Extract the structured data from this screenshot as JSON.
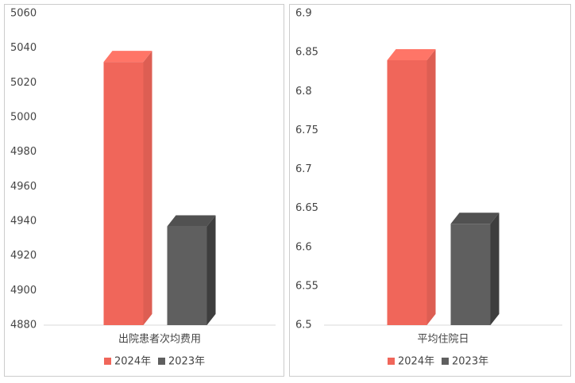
{
  "chart_data": [
    {
      "type": "bar3d",
      "categories": [
        "出院患者次均费用"
      ],
      "series": [
        {
          "name": "2024年",
          "color": "#f0665a",
          "values": [
            5032
          ]
        },
        {
          "name": "2023年",
          "color": "#5f5f5f",
          "values": [
            4937
          ]
        }
      ],
      "ylim": [
        4880,
        5060
      ],
      "yticks": [
        4880,
        4900,
        4920,
        4940,
        4960,
        4980,
        5000,
        5020,
        5040,
        5060
      ],
      "legend": "bottom"
    },
    {
      "type": "bar3d",
      "categories": [
        "平均住院日"
      ],
      "series": [
        {
          "name": "2024年",
          "color": "#f0665a",
          "values": [
            6.84
          ]
        },
        {
          "name": "2023年",
          "color": "#5f5f5f",
          "values": [
            6.63
          ]
        }
      ],
      "ylim": [
        6.5,
        6.9
      ],
      "yticks": [
        6.5,
        6.55,
        6.6,
        6.65,
        6.7,
        6.75,
        6.8,
        6.85,
        6.9
      ],
      "legend": "bottom"
    }
  ]
}
